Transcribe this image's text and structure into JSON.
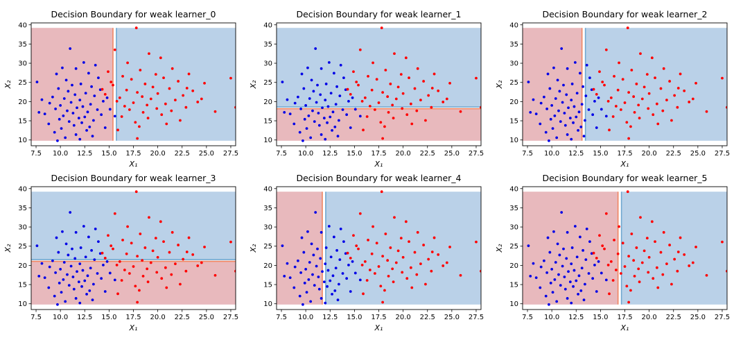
{
  "chart_data": [
    {
      "type": "scatter",
      "title": "Decision Boundary for weak learner_0",
      "xlabel": "X₁",
      "ylabel": "X₂",
      "xlim": [
        7.0,
        28.0
      ],
      "ylim": [
        8.5,
        40.5
      ],
      "xticks": [
        "7.5",
        "10.0",
        "12.5",
        "15.0",
        "17.5",
        "20.0",
        "22.5",
        "25.0",
        "27.5"
      ],
      "yticks": [
        "10",
        "15",
        "20",
        "25",
        "30",
        "35",
        "40"
      ],
      "split": {
        "feature": "X1",
        "threshold": 15.4
      },
      "regions": {
        "low": "red",
        "high": "blue"
      }
    },
    {
      "type": "scatter",
      "title": "Decision Boundary for weak learner_1",
      "xlabel": "X₁",
      "ylabel": "X₂",
      "xlim": [
        7.0,
        28.0
      ],
      "ylim": [
        8.5,
        40.5
      ],
      "xticks": [
        "7.5",
        "10.0",
        "12.5",
        "15.0",
        "17.5",
        "20.0",
        "22.5",
        "25.0",
        "27.5"
      ],
      "yticks": [
        "10",
        "15",
        "20",
        "25",
        "30",
        "35",
        "40"
      ],
      "split": {
        "feature": "X2",
        "threshold": 18.6
      },
      "regions": {
        "low": "red",
        "high": "blue"
      }
    },
    {
      "type": "scatter",
      "title": "Decision Boundary for weak learner_2",
      "xlabel": "X₁",
      "ylabel": "X₂",
      "xlim": [
        7.0,
        28.0
      ],
      "ylim": [
        8.5,
        40.5
      ],
      "xticks": [
        "7.5",
        "10.0",
        "12.5",
        "15.0",
        "17.5",
        "20.0",
        "22.5",
        "25.0",
        "27.5"
      ],
      "yticks": [
        "10",
        "15",
        "20",
        "25",
        "30",
        "35",
        "40"
      ],
      "split": {
        "feature": "X1",
        "threshold": 13.1
      },
      "regions": {
        "low": "red",
        "high": "blue"
      }
    },
    {
      "type": "scatter",
      "title": "Decision Boundary for weak learner_3",
      "xlabel": "X₁",
      "ylabel": "X₂",
      "xlim": [
        7.0,
        28.0
      ],
      "ylim": [
        8.5,
        40.5
      ],
      "xticks": [
        "7.5",
        "10.0",
        "12.5",
        "15.0",
        "17.5",
        "20.0",
        "22.5",
        "25.0",
        "27.5"
      ],
      "yticks": [
        "10",
        "15",
        "20",
        "25",
        "30",
        "35",
        "40"
      ],
      "split": {
        "feature": "X2",
        "threshold": 21.5
      },
      "regions": {
        "low": "red",
        "high": "blue"
      }
    },
    {
      "type": "scatter",
      "title": "Decision Boundary for weak learner_4",
      "xlabel": "X₁",
      "ylabel": "X₂",
      "xlim": [
        7.0,
        28.0
      ],
      "ylim": [
        8.5,
        40.5
      ],
      "xticks": [
        "7.5",
        "10.0",
        "12.5",
        "15.0",
        "17.5",
        "20.0",
        "22.5",
        "25.0",
        "27.5"
      ],
      "yticks": [
        "10",
        "15",
        "20",
        "25",
        "30",
        "35",
        "40"
      ],
      "split": {
        "feature": "X1",
        "threshold": 11.7
      },
      "regions": {
        "low": "red",
        "high": "blue"
      }
    },
    {
      "type": "scatter",
      "title": "Decision Boundary for weak learner_5",
      "xlabel": "X₁",
      "ylabel": "X₂",
      "xlim": [
        7.0,
        28.0
      ],
      "ylim": [
        8.5,
        40.5
      ],
      "xticks": [
        "7.5",
        "10.0",
        "12.5",
        "15.0",
        "17.5",
        "20.0",
        "22.5",
        "25.0",
        "27.5"
      ],
      "yticks": [
        "10",
        "15",
        "20",
        "25",
        "30",
        "35",
        "40"
      ],
      "split": {
        "feature": "X1",
        "threshold": 16.8
      },
      "regions": {
        "low": "red",
        "high": "blue"
      }
    }
  ],
  "scatter_points": {
    "blue": [
      [
        11.0,
        33.8
      ],
      [
        12.4,
        30.2
      ],
      [
        13.6,
        29.5
      ],
      [
        11.6,
        28.6
      ],
      [
        10.2,
        28.8
      ],
      [
        12.9,
        27.4
      ],
      [
        9.6,
        27.2
      ],
      [
        13.9,
        26.2
      ],
      [
        10.6,
        25.6
      ],
      [
        7.6,
        25.1
      ],
      [
        12.1,
        24.6
      ],
      [
        11.2,
        24.3
      ],
      [
        13.2,
        23.9
      ],
      [
        9.8,
        23.4
      ],
      [
        14.1,
        23.1
      ],
      [
        10.8,
        22.7
      ],
      [
        12.6,
        22.2
      ],
      [
        11.5,
        21.8
      ],
      [
        13.5,
        21.5
      ],
      [
        9.2,
        21.2
      ],
      [
        10.4,
        20.8
      ],
      [
        12.0,
        20.4
      ],
      [
        14.4,
        20.1
      ],
      [
        11.1,
        19.8
      ],
      [
        8.9,
        19.6
      ],
      [
        13.1,
        19.3
      ],
      [
        10.0,
        19.0
      ],
      [
        12.3,
        18.7
      ],
      [
        11.7,
        18.4
      ],
      [
        9.5,
        18.1
      ],
      [
        13.8,
        17.9
      ],
      [
        10.7,
        17.6
      ],
      [
        12.8,
        17.3
      ],
      [
        11.3,
        17.0
      ],
      [
        8.4,
        16.8
      ],
      [
        14.2,
        16.6
      ],
      [
        10.3,
        16.3
      ],
      [
        12.5,
        16.0
      ],
      [
        11.9,
        15.7
      ],
      [
        9.9,
        15.4
      ],
      [
        13.4,
        15.1
      ],
      [
        10.9,
        14.8
      ],
      [
        12.2,
        14.5
      ],
      [
        8.8,
        14.2
      ],
      [
        11.4,
        13.8
      ],
      [
        13.0,
        13.4
      ],
      [
        10.1,
        13.0
      ],
      [
        12.7,
        12.5
      ],
      [
        9.4,
        12.0
      ],
      [
        11.6,
        11.4
      ],
      [
        13.3,
        11.0
      ],
      [
        10.5,
        10.6
      ],
      [
        12.0,
        10.2
      ],
      [
        9.7,
        9.8
      ],
      [
        15.1,
        18.0
      ],
      [
        15.6,
        16.2
      ],
      [
        14.8,
        21.0
      ],
      [
        7.8,
        17.2
      ],
      [
        8.1,
        20.5
      ],
      [
        14.6,
        13.2
      ]
    ],
    "red": [
      [
        17.8,
        39.2
      ],
      [
        20.3,
        31.4
      ],
      [
        19.1,
        32.5
      ],
      [
        15.6,
        33.5
      ],
      [
        16.9,
        30.1
      ],
      [
        21.5,
        28.6
      ],
      [
        18.2,
        28.2
      ],
      [
        14.9,
        27.8
      ],
      [
        19.8,
        27.1
      ],
      [
        23.2,
        27.2
      ],
      [
        16.4,
        26.6
      ],
      [
        20.6,
        26.2
      ],
      [
        17.3,
        25.8
      ],
      [
        22.1,
        25.3
      ],
      [
        24.8,
        24.8
      ],
      [
        18.7,
        24.6
      ],
      [
        15.4,
        24.3
      ],
      [
        19.5,
        23.8
      ],
      [
        21.2,
        23.4
      ],
      [
        16.8,
        23.0
      ],
      [
        23.6,
        22.8
      ],
      [
        17.9,
        22.4
      ],
      [
        20.0,
        22.1
      ],
      [
        14.6,
        21.9
      ],
      [
        22.6,
        21.6
      ],
      [
        18.4,
        21.3
      ],
      [
        16.1,
        21.0
      ],
      [
        19.3,
        20.7
      ],
      [
        21.8,
        20.4
      ],
      [
        15.8,
        20.1
      ],
      [
        24.1,
        19.9
      ],
      [
        17.5,
        19.7
      ],
      [
        20.8,
        19.4
      ],
      [
        18.9,
        19.1
      ],
      [
        16.6,
        18.8
      ],
      [
        22.9,
        18.5
      ],
      [
        19.9,
        18.2
      ],
      [
        17.1,
        17.9
      ],
      [
        21.4,
        17.6
      ],
      [
        18.5,
        17.2
      ],
      [
        25.9,
        17.4
      ],
      [
        20.4,
        16.6
      ],
      [
        16.3,
        16.1
      ],
      [
        19.0,
        15.7
      ],
      [
        22.3,
        15.1
      ],
      [
        17.7,
        14.6
      ],
      [
        20.9,
        14.2
      ],
      [
        18.1,
        13.5
      ],
      [
        15.9,
        12.6
      ],
      [
        17.9,
        10.4
      ],
      [
        27.5,
        26.1
      ],
      [
        28.0,
        18.5
      ],
      [
        24.5,
        20.7
      ],
      [
        23.0,
        23.5
      ],
      [
        14.3,
        23.2
      ],
      [
        15.2,
        25.1
      ]
    ]
  },
  "colors": {
    "red_region": "#e8b9bd",
    "blue_region": "#bad1e8",
    "red_line": "#f08662",
    "blue_line": "#6fa8d0",
    "red_point": "#ff0000",
    "blue_point": "#0000e6"
  }
}
